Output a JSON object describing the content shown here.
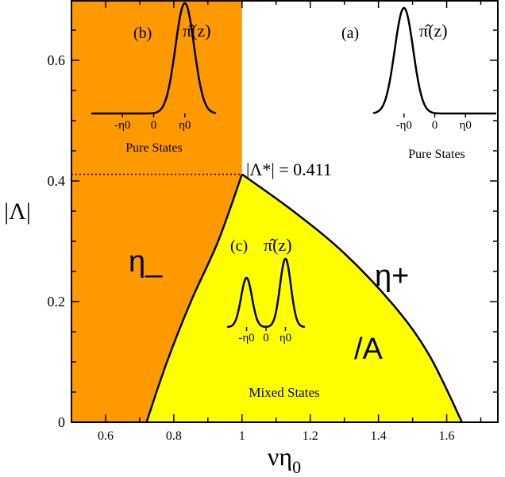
{
  "chart_data": {
    "type": "area",
    "title": "",
    "xlabel": "νη",
    "xlabel_sub": "0",
    "ylabel": "|Λ|",
    "xlim": [
      0.5,
      1.75
    ],
    "ylim": [
      0,
      0.7
    ],
    "x_ticks": [
      0.6,
      0.8,
      1.0,
      1.2,
      1.4,
      1.6
    ],
    "x_tick_labels": [
      "0.6",
      "0.8",
      "1",
      "1.2",
      "1.4",
      "1.6"
    ],
    "y_ticks": [
      0,
      0.2,
      0.4,
      0.6
    ],
    "y_tick_labels": [
      "0",
      "0.2",
      "0.4",
      "0.6"
    ],
    "grid": false,
    "colors": {
      "eta_minus_region": "#ff9900",
      "mixed_region": "#ffff00",
      "curve": "#000000"
    },
    "eta_minus_region": {
      "x_max": 1.0
    },
    "left_boundary": [
      [
        0.72,
        0
      ],
      [
        0.78,
        0.1
      ],
      [
        0.85,
        0.2
      ],
      [
        0.93,
        0.3
      ],
      [
        1.0,
        0.411
      ]
    ],
    "right_boundary": [
      [
        1.0,
        0.411
      ],
      [
        1.15,
        0.35
      ],
      [
        1.3,
        0.28
      ],
      [
        1.45,
        0.19
      ],
      [
        1.55,
        0.11
      ],
      [
        1.645,
        0
      ]
    ],
    "critical_point": {
      "x": 1.0,
      "y": 0.411,
      "label": "|Λ*| = 0.411"
    },
    "region_labels": {
      "eta_minus": "η_",
      "eta_plus": "η+",
      "mixed": "Mixed States",
      "a_symbol": "/A",
      "pure_b": "Pure States",
      "pure_a": "Pure States"
    },
    "insets": [
      {
        "id": "b",
        "label": "(b)",
        "func": "π̂(z)",
        "ticks": [
          "-η0",
          "0",
          "η0"
        ],
        "peaks": [
          {
            "center": 1,
            "height": 1,
            "width": 0.3
          }
        ]
      },
      {
        "id": "a",
        "label": "(a)",
        "func": "π̂(z)",
        "ticks": [
          "-η0",
          "0",
          "η0"
        ],
        "peaks": [
          {
            "center": -1,
            "height": 1,
            "width": 0.3
          }
        ]
      },
      {
        "id": "c",
        "label": "(c)",
        "func": "π̂(z)",
        "ticks": [
          "-η0",
          "0",
          "η0"
        ],
        "peaks": [
          {
            "center": -1,
            "height": 0.72,
            "width": 0.28
          },
          {
            "center": 1,
            "height": 1,
            "width": 0.28
          }
        ]
      }
    ]
  }
}
